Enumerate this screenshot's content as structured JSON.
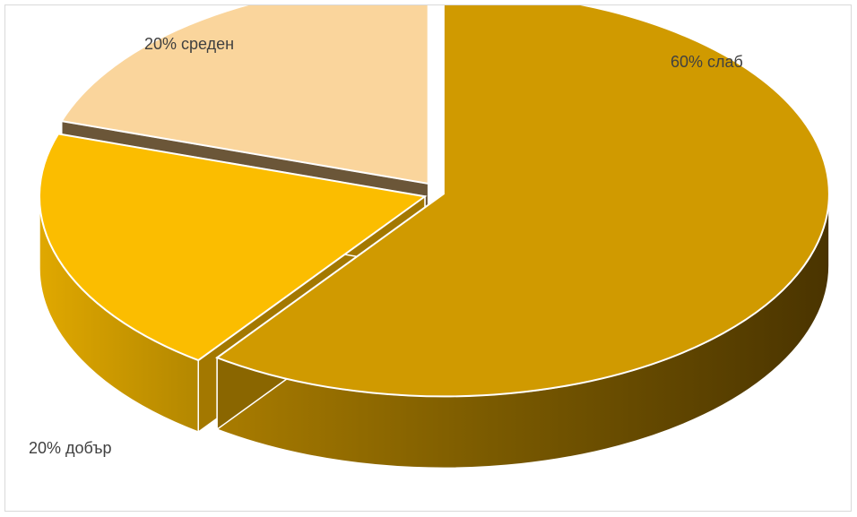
{
  "chart_data": {
    "type": "pie",
    "title": "",
    "categories": [
      "слаб",
      "добър",
      "среден"
    ],
    "values": [
      60,
      20,
      20
    ],
    "data_labels": [
      "60% слаб",
      "20% добър",
      "20% среден"
    ],
    "colors": [
      "#d09a00",
      "#fbbd00",
      "#fad59c"
    ],
    "start_angle_deg": 0,
    "direction": "clockwise",
    "style": "3d-exploded",
    "legend": "none"
  }
}
